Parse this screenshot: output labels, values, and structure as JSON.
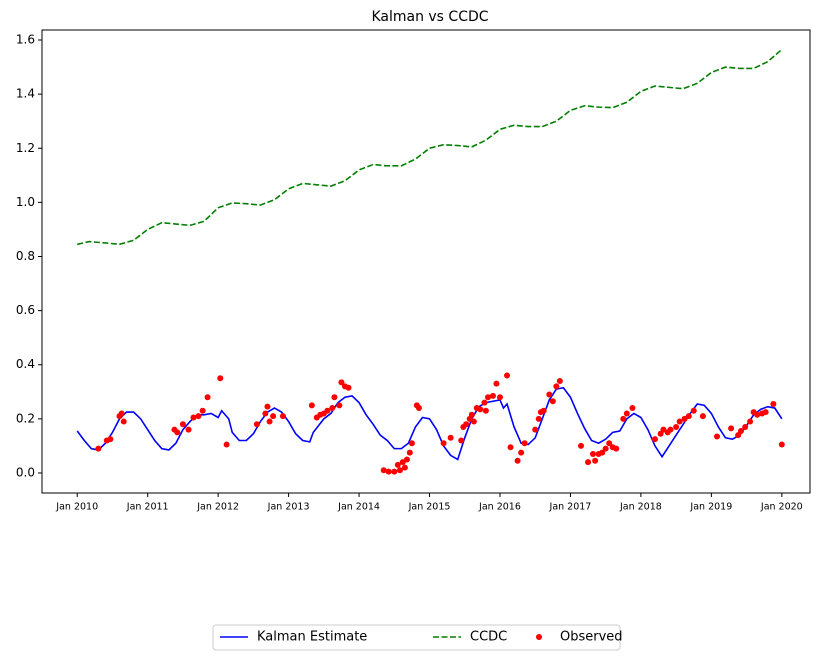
{
  "chart_data": {
    "type": "line",
    "title": "Kalman vs CCDC",
    "xlim": [
      2009.5,
      2020.4
    ],
    "ylim": [
      -0.074,
      1.637
    ],
    "xticks": [
      {
        "value": 2010,
        "label": "Jan 2010"
      },
      {
        "value": 2011,
        "label": "Jan 2011"
      },
      {
        "value": 2012,
        "label": "Jan 2012"
      },
      {
        "value": 2013,
        "label": "Jan 2013"
      },
      {
        "value": 2014,
        "label": "Jan 2014"
      },
      {
        "value": 2015,
        "label": "Jan 2015"
      },
      {
        "value": 2016,
        "label": "Jan 2016"
      },
      {
        "value": 2017,
        "label": "Jan 2017"
      },
      {
        "value": 2018,
        "label": "Jan 2018"
      },
      {
        "value": 2019,
        "label": "Jan 2019"
      },
      {
        "value": 2020,
        "label": "Jan 2020"
      }
    ],
    "yticks": [
      {
        "value": 0,
        "label": "0.0"
      },
      0.2,
      0.4,
      0.6,
      0.8,
      {
        "value": 1,
        "label": "1.0"
      },
      1.2,
      1.4,
      1.6
    ],
    "legend": "below",
    "series": [
      {
        "name": "Kalman Estimate",
        "color": "#0000ff",
        "linestyle": "solid",
        "x": [
          2010.0,
          2010.1,
          2010.2,
          2010.3,
          2010.4,
          2010.5,
          2010.6,
          2010.7,
          2010.8,
          2010.9,
          2011.0,
          2011.1,
          2011.2,
          2011.3,
          2011.4,
          2011.5,
          2011.6,
          2011.7,
          2011.8,
          2011.9,
          2012.0,
          2012.05,
          2012.15,
          2012.2,
          2012.3,
          2012.4,
          2012.5,
          2012.6,
          2012.7,
          2012.8,
          2012.9,
          2013.0,
          2013.1,
          2013.2,
          2013.3,
          2013.35,
          2013.5,
          2013.6,
          2013.7,
          2013.8,
          2013.9,
          2014.0,
          2014.1,
          2014.2,
          2014.3,
          2014.4,
          2014.5,
          2014.6,
          2014.7,
          2014.8,
          2014.9,
          2015.0,
          2015.1,
          2015.2,
          2015.3,
          2015.4,
          2015.5,
          2015.6,
          2015.7,
          2015.8,
          2015.9,
          2016.0,
          2016.05,
          2016.1,
          2016.2,
          2016.3,
          2016.4,
          2016.5,
          2016.6,
          2016.7,
          2016.8,
          2016.9,
          2017.0,
          2017.1,
          2017.2,
          2017.3,
          2017.4,
          2017.5,
          2017.6,
          2017.7,
          2017.8,
          2017.9,
          2018.0,
          2018.1,
          2018.2,
          2018.3,
          2018.4,
          2018.5,
          2018.6,
          2018.7,
          2018.8,
          2018.9,
          2019.0,
          2019.1,
          2019.2,
          2019.3,
          2019.4,
          2019.5,
          2019.6,
          2019.7,
          2019.8,
          2019.9,
          2020.0
        ],
        "values": [
          0.155,
          0.12,
          0.09,
          0.085,
          0.11,
          0.15,
          0.2,
          0.225,
          0.225,
          0.2,
          0.16,
          0.12,
          0.09,
          0.085,
          0.11,
          0.16,
          0.19,
          0.215,
          0.215,
          0.22,
          0.205,
          0.23,
          0.2,
          0.15,
          0.12,
          0.12,
          0.145,
          0.19,
          0.225,
          0.24,
          0.225,
          0.19,
          0.145,
          0.12,
          0.115,
          0.15,
          0.2,
          0.22,
          0.26,
          0.28,
          0.285,
          0.26,
          0.215,
          0.18,
          0.14,
          0.12,
          0.09,
          0.09,
          0.11,
          0.17,
          0.205,
          0.2,
          0.16,
          0.1,
          0.065,
          0.05,
          0.13,
          0.2,
          0.245,
          0.26,
          0.265,
          0.27,
          0.24,
          0.255,
          0.17,
          0.11,
          0.105,
          0.13,
          0.2,
          0.27,
          0.31,
          0.315,
          0.28,
          0.22,
          0.165,
          0.12,
          0.11,
          0.125,
          0.15,
          0.155,
          0.2,
          0.22,
          0.205,
          0.16,
          0.1,
          0.06,
          0.1,
          0.14,
          0.18,
          0.22,
          0.255,
          0.25,
          0.22,
          0.17,
          0.13,
          0.125,
          0.14,
          0.175,
          0.215,
          0.235,
          0.245,
          0.24,
          0.2
        ]
      },
      {
        "name": "CCDC",
        "color": "#008000",
        "linestyle": "dashed",
        "x": [
          2010.0,
          2010.17,
          2010.4,
          2010.6,
          2010.8,
          2011.0,
          2011.2,
          2011.4,
          2011.6,
          2011.8,
          2012.0,
          2012.2,
          2012.4,
          2012.6,
          2012.8,
          2013.0,
          2013.2,
          2013.4,
          2013.6,
          2013.8,
          2014.0,
          2014.2,
          2014.4,
          2014.6,
          2014.8,
          2015.0,
          2015.2,
          2015.4,
          2015.6,
          2015.8,
          2016.0,
          2016.2,
          2016.4,
          2016.6,
          2016.8,
          2017.0,
          2017.2,
          2017.4,
          2017.6,
          2017.8,
          2018.0,
          2018.2,
          2018.4,
          2018.6,
          2018.8,
          2019.0,
          2019.2,
          2019.4,
          2019.6,
          2019.8,
          2020.0
        ],
        "values": [
          0.845,
          0.855,
          0.85,
          0.845,
          0.86,
          0.9,
          0.925,
          0.92,
          0.915,
          0.93,
          0.98,
          0.998,
          0.995,
          0.99,
          1.01,
          1.05,
          1.07,
          1.065,
          1.06,
          1.08,
          1.12,
          1.14,
          1.135,
          1.135,
          1.16,
          1.2,
          1.213,
          1.21,
          1.205,
          1.23,
          1.27,
          1.285,
          1.28,
          1.28,
          1.3,
          1.34,
          1.357,
          1.352,
          1.35,
          1.37,
          1.41,
          1.43,
          1.425,
          1.42,
          1.44,
          1.48,
          1.5,
          1.495,
          1.495,
          1.52,
          1.565
        ]
      },
      {
        "name": "Observed",
        "color": "#ff0000",
        "linestyle": "scatter",
        "x": [
          2010.3,
          2010.42,
          2010.47,
          2010.6,
          2010.63,
          2010.66,
          2011.38,
          2011.42,
          2011.5,
          2011.58,
          2011.65,
          2011.72,
          2011.78,
          2011.85,
          2012.03,
          2012.12,
          2012.55,
          2012.67,
          2012.7,
          2012.73,
          2012.78,
          2012.92,
          2013.33,
          2013.4,
          2013.45,
          2013.5,
          2013.55,
          2013.62,
          2013.65,
          2013.72,
          2013.75,
          2013.8,
          2013.85,
          2014.35,
          2014.42,
          2014.5,
          2014.55,
          2014.58,
          2014.62,
          2014.65,
          2014.68,
          2014.72,
          2014.75,
          2014.82,
          2014.85,
          2015.2,
          2015.3,
          2015.45,
          2015.48,
          2015.52,
          2015.57,
          2015.6,
          2015.63,
          2015.67,
          2015.72,
          2015.78,
          2015.8,
          2015.83,
          2015.9,
          2015.95,
          2016.0,
          2016.1,
          2016.15,
          2016.25,
          2016.3,
          2016.35,
          2016.5,
          2016.55,
          2016.58,
          2016.62,
          2016.7,
          2016.75,
          2016.8,
          2016.85,
          2017.15,
          2017.25,
          2017.32,
          2017.35,
          2017.4,
          2017.45,
          2017.5,
          2017.55,
          2017.6,
          2017.65,
          2017.75,
          2017.8,
          2017.88,
          2018.2,
          2018.28,
          2018.32,
          2018.38,
          2018.42,
          2018.5,
          2018.55,
          2018.62,
          2018.68,
          2018.75,
          2018.88,
          2019.08,
          2019.28,
          2019.38,
          2019.42,
          2019.48,
          2019.55,
          2019.6,
          2019.65,
          2019.72,
          2019.77,
          2019.88,
          2020.0
        ],
        "values": [
          0.09,
          0.12,
          0.125,
          0.21,
          0.22,
          0.19,
          0.16,
          0.15,
          0.18,
          0.16,
          0.205,
          0.21,
          0.23,
          0.28,
          0.35,
          0.105,
          0.18,
          0.22,
          0.245,
          0.19,
          0.21,
          0.21,
          0.25,
          0.205,
          0.215,
          0.22,
          0.23,
          0.24,
          0.28,
          0.25,
          0.335,
          0.32,
          0.315,
          0.01,
          0.005,
          0.005,
          0.03,
          0.01,
          0.04,
          0.02,
          0.05,
          0.075,
          0.11,
          0.25,
          0.24,
          0.11,
          0.13,
          0.12,
          0.17,
          0.18,
          0.2,
          0.215,
          0.19,
          0.24,
          0.235,
          0.26,
          0.23,
          0.28,
          0.285,
          0.33,
          0.28,
          0.36,
          0.095,
          0.045,
          0.075,
          0.11,
          0.16,
          0.2,
          0.225,
          0.23,
          0.29,
          0.265,
          0.32,
          0.34,
          0.1,
          0.04,
          0.07,
          0.045,
          0.07,
          0.075,
          0.09,
          0.11,
          0.095,
          0.09,
          0.2,
          0.22,
          0.24,
          0.125,
          0.145,
          0.16,
          0.15,
          0.16,
          0.17,
          0.19,
          0.2,
          0.21,
          0.23,
          0.21,
          0.135,
          0.165,
          0.14,
          0.155,
          0.17,
          0.19,
          0.225,
          0.215,
          0.22,
          0.225,
          0.255,
          0.105
        ]
      }
    ]
  }
}
